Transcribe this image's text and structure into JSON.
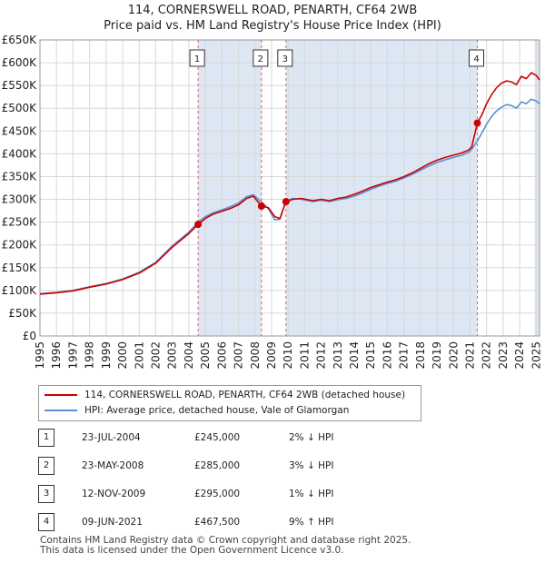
{
  "header": {
    "title_line1": "114, CORNERSWELL ROAD, PENARTH, CF64 2WB",
    "title_line2": "Price paid vs. HM Land Registry's House Price Index (HPI)"
  },
  "chart_data": {
    "type": "line",
    "title": "114, CORNERSWELL ROAD, PENARTH, CF64 2WB — Price paid vs. HM Land Registry's House Price Index (HPI)",
    "xlim": [
      1995.0,
      2025.2
    ],
    "ylim": [
      0,
      650000
    ],
    "x_ticks": [
      1995,
      1996,
      1997,
      1998,
      1999,
      2000,
      2001,
      2002,
      2003,
      2004,
      2005,
      2006,
      2007,
      2008,
      2009,
      2010,
      2011,
      2012,
      2013,
      2014,
      2015,
      2016,
      2017,
      2018,
      2019,
      2020,
      2021,
      2022,
      2023,
      2024,
      2025
    ],
    "y_ticks": [
      0,
      50000,
      100000,
      150000,
      200000,
      250000,
      300000,
      350000,
      400000,
      450000,
      500000,
      550000,
      600000,
      650000
    ],
    "y_tick_labels": [
      "£0",
      "£50K",
      "£100K",
      "£150K",
      "£200K",
      "£250K",
      "£300K",
      "£350K",
      "£400K",
      "£450K",
      "£500K",
      "£550K",
      "£600K",
      "£650K"
    ],
    "colors": {
      "property": "#cc0000",
      "hpi": "#5b8fd4",
      "shade": "#dde6f3",
      "vline": "#e06060",
      "grid": "#d8d8d8"
    },
    "series": [
      {
        "name": "114, CORNERSWELL ROAD, PENARTH, CF64 2WB (detached house)",
        "color": "#cc0000",
        "points": [
          [
            1995.0,
            92000
          ],
          [
            1996.0,
            95000
          ],
          [
            1997.0,
            99000
          ],
          [
            1998.0,
            107000
          ],
          [
            1999.0,
            114000
          ],
          [
            2000.0,
            124000
          ],
          [
            2001.0,
            138000
          ],
          [
            2002.0,
            160000
          ],
          [
            2003.0,
            195000
          ],
          [
            2004.0,
            225000
          ],
          [
            2004.56,
            245000
          ],
          [
            2005.0,
            258000
          ],
          [
            2005.5,
            268000
          ],
          [
            2006.0,
            274000
          ],
          [
            2006.5,
            280000
          ],
          [
            2007.0,
            288000
          ],
          [
            2007.5,
            302000
          ],
          [
            2007.9,
            307000
          ],
          [
            2008.39,
            285000
          ],
          [
            2008.8,
            282000
          ],
          [
            2009.2,
            262000
          ],
          [
            2009.5,
            258000
          ],
          [
            2009.87,
            295000
          ],
          [
            2010.3,
            300000
          ],
          [
            2010.8,
            302000
          ],
          [
            2011.5,
            297000
          ],
          [
            2012.0,
            300000
          ],
          [
            2012.5,
            297000
          ],
          [
            2013.0,
            302000
          ],
          [
            2013.5,
            305000
          ],
          [
            2014.0,
            311000
          ],
          [
            2014.5,
            318000
          ],
          [
            2015.0,
            326000
          ],
          [
            2015.5,
            332000
          ],
          [
            2016.0,
            338000
          ],
          [
            2016.5,
            343000
          ],
          [
            2017.0,
            350000
          ],
          [
            2017.5,
            358000
          ],
          [
            2018.0,
            368000
          ],
          [
            2018.5,
            378000
          ],
          [
            2019.0,
            386000
          ],
          [
            2019.5,
            392000
          ],
          [
            2020.0,
            397000
          ],
          [
            2020.5,
            402000
          ],
          [
            2020.9,
            408000
          ],
          [
            2021.1,
            415000
          ],
          [
            2021.44,
            467500
          ],
          [
            2021.7,
            485000
          ],
          [
            2022.0,
            510000
          ],
          [
            2022.3,
            530000
          ],
          [
            2022.6,
            545000
          ],
          [
            2022.9,
            555000
          ],
          [
            2023.2,
            560000
          ],
          [
            2023.5,
            558000
          ],
          [
            2023.8,
            552000
          ],
          [
            2024.1,
            570000
          ],
          [
            2024.4,
            565000
          ],
          [
            2024.7,
            578000
          ],
          [
            2025.0,
            572000
          ],
          [
            2025.2,
            562000
          ]
        ]
      },
      {
        "name": "HPI: Average price, detached house, Vale of Glamorgan",
        "color": "#5b8fd4",
        "points": [
          [
            1995.0,
            93000
          ],
          [
            1996.0,
            96000
          ],
          [
            1997.0,
            100000
          ],
          [
            1998.0,
            108000
          ],
          [
            1999.0,
            115000
          ],
          [
            2000.0,
            125000
          ],
          [
            2001.0,
            140000
          ],
          [
            2002.0,
            162000
          ],
          [
            2003.0,
            198000
          ],
          [
            2004.0,
            228000
          ],
          [
            2004.56,
            250000
          ],
          [
            2005.0,
            262000
          ],
          [
            2005.5,
            271000
          ],
          [
            2006.0,
            277000
          ],
          [
            2006.5,
            284000
          ],
          [
            2007.0,
            292000
          ],
          [
            2007.5,
            306000
          ],
          [
            2007.9,
            310000
          ],
          [
            2008.39,
            294000
          ],
          [
            2008.8,
            280000
          ],
          [
            2009.2,
            255000
          ],
          [
            2009.5,
            256000
          ],
          [
            2009.87,
            297000
          ],
          [
            2010.3,
            302000
          ],
          [
            2010.8,
            300000
          ],
          [
            2011.5,
            295000
          ],
          [
            2012.0,
            298000
          ],
          [
            2012.5,
            295000
          ],
          [
            2013.0,
            299000
          ],
          [
            2013.5,
            302000
          ],
          [
            2014.0,
            307000
          ],
          [
            2014.5,
            314000
          ],
          [
            2015.0,
            322000
          ],
          [
            2015.5,
            329000
          ],
          [
            2016.0,
            335000
          ],
          [
            2016.5,
            340000
          ],
          [
            2017.0,
            347000
          ],
          [
            2017.5,
            355000
          ],
          [
            2018.0,
            364000
          ],
          [
            2018.5,
            373000
          ],
          [
            2019.0,
            381000
          ],
          [
            2019.5,
            387000
          ],
          [
            2020.0,
            392000
          ],
          [
            2020.5,
            397000
          ],
          [
            2020.9,
            403000
          ],
          [
            2021.1,
            410000
          ],
          [
            2021.44,
            428000
          ],
          [
            2021.7,
            445000
          ],
          [
            2022.0,
            465000
          ],
          [
            2022.3,
            482000
          ],
          [
            2022.6,
            494000
          ],
          [
            2022.9,
            502000
          ],
          [
            2023.2,
            508000
          ],
          [
            2023.5,
            506000
          ],
          [
            2023.8,
            500000
          ],
          [
            2024.1,
            514000
          ],
          [
            2024.4,
            510000
          ],
          [
            2024.7,
            520000
          ],
          [
            2025.0,
            516000
          ],
          [
            2025.2,
            510000
          ]
        ]
      }
    ],
    "sales": [
      {
        "label": "1",
        "x": 2004.56,
        "price": 245000
      },
      {
        "label": "2",
        "x": 2008.39,
        "price": 285000
      },
      {
        "label": "3",
        "x": 2009.87,
        "price": 295000
      },
      {
        "label": "4",
        "x": 2021.44,
        "price": 467500
      }
    ],
    "shaded_ranges": [
      [
        2004.56,
        2008.39
      ],
      [
        2009.87,
        2021.44
      ],
      [
        2024.9,
        2025.2
      ]
    ]
  },
  "legend": {
    "property_label": "114, CORNERSWELL ROAD, PENARTH, CF64 2WB (detached house)",
    "hpi_label": "HPI: Average price, detached house, Vale of Glamorgan",
    "property_color": "#cc0000",
    "hpi_color": "#5b8fd4"
  },
  "transactions": [
    {
      "num": "1",
      "date": "23-JUL-2004",
      "price": "£245,000",
      "hpi_diff": "2% ↓ HPI"
    },
    {
      "num": "2",
      "date": "23-MAY-2008",
      "price": "£285,000",
      "hpi_diff": "3% ↓ HPI"
    },
    {
      "num": "3",
      "date": "12-NOV-2009",
      "price": "£295,000",
      "hpi_diff": "1% ↓ HPI"
    },
    {
      "num": "4",
      "date": "09-JUN-2021",
      "price": "£467,500",
      "hpi_diff": "9% ↑ HPI"
    }
  ],
  "footer": {
    "line1": "Contains HM Land Registry data © Crown copyright and database right 2025.",
    "line2": "This data is licensed under the Open Government Licence v3.0."
  }
}
